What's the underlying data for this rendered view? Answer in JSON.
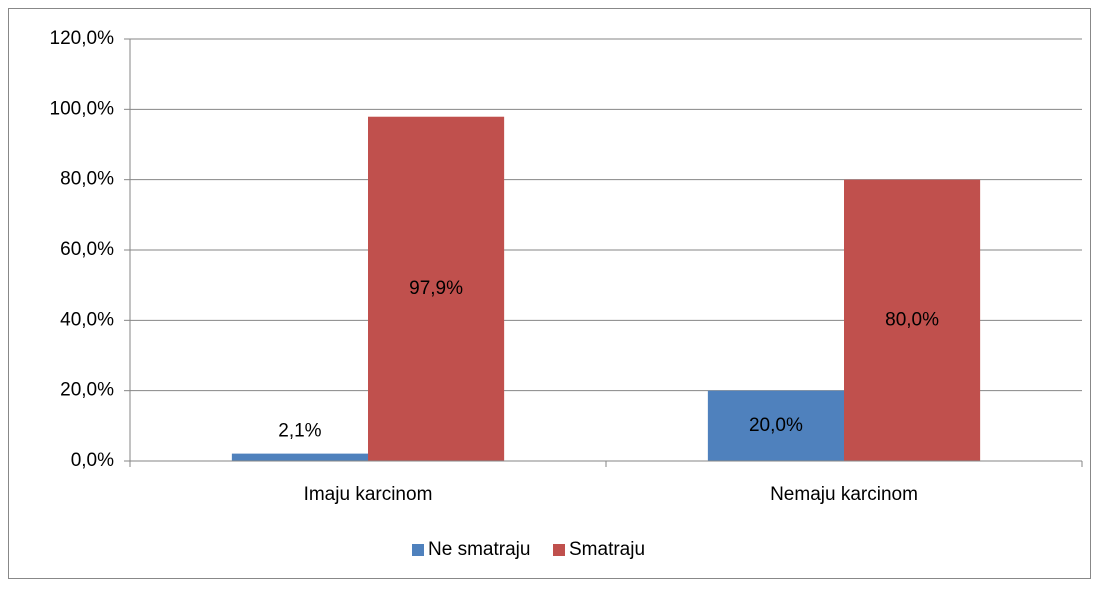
{
  "chart_data": {
    "type": "bar",
    "categories": [
      "Imaju karcinom",
      "Nemaju karcinom"
    ],
    "series": [
      {
        "name": "Ne smatraju",
        "color": "#4f81bd",
        "values": [
          2.1,
          20.0
        ],
        "value_labels": [
          "2,1%",
          "20,0%"
        ]
      },
      {
        "name": "Smatraju",
        "color": "#c0504d",
        "values": [
          97.9,
          80.0
        ],
        "value_labels": [
          "97,9%",
          "80,0%"
        ]
      }
    ],
    "ylim": [
      0,
      120
    ],
    "yticks": [
      {
        "value": 0,
        "label": "0,0%"
      },
      {
        "value": 20,
        "label": "20,0%"
      },
      {
        "value": 40,
        "label": "40,0%"
      },
      {
        "value": 60,
        "label": "60,0%"
      },
      {
        "value": 80,
        "label": "80,0%"
      },
      {
        "value": 100,
        "label": "100,0%"
      },
      {
        "value": 120,
        "label": "120,0%"
      }
    ],
    "grid": true,
    "legend": "bottom"
  }
}
